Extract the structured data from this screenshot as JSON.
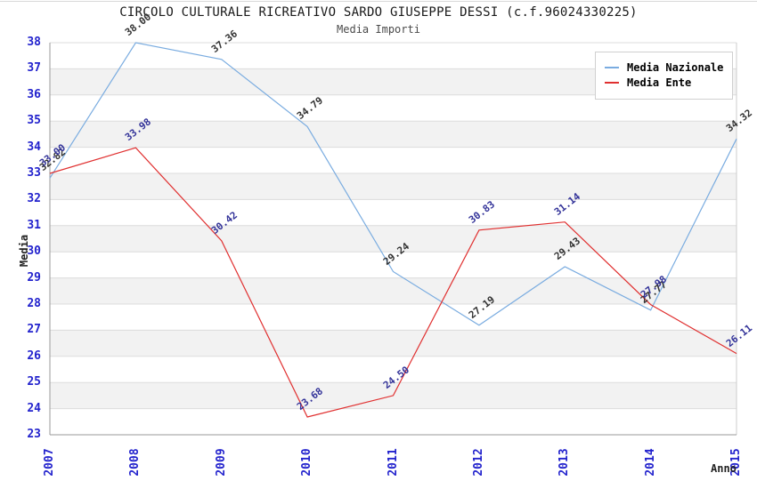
{
  "title": "CIRCOLO CULTURALE RICREATIVO SARDO GIUSEPPE DESSI (c.f.96024330225)",
  "subtitle": "Media Importi",
  "chart_data": {
    "type": "line",
    "x": [
      "2007",
      "2008",
      "2009",
      "2010",
      "2011",
      "2012",
      "2013",
      "2014",
      "2015"
    ],
    "series": [
      {
        "name": "Media Nazionale",
        "color": "#7AACE0",
        "label_color": "#333333",
        "values": [
          32.82,
          38.0,
          37.36,
          34.79,
          29.24,
          27.19,
          29.43,
          27.77,
          34.32
        ]
      },
      {
        "name": "Media Ente",
        "color": "#E03030",
        "label_color": "#333399",
        "values": [
          33.0,
          33.98,
          30.42,
          23.68,
          24.5,
          30.83,
          31.14,
          27.98,
          26.11
        ]
      }
    ],
    "xlabel": "Anno",
    "ylabel": "Media",
    "ylim": [
      23,
      38
    ],
    "y_tick_step": 1,
    "grid": true,
    "legend_position": "top-right",
    "band_color": "#F2F2F2",
    "grid_color": "#DCDCDC",
    "axis_color": "#999999",
    "right_spine_color": "#CCCCCC",
    "tick_color": "#2323CD"
  }
}
